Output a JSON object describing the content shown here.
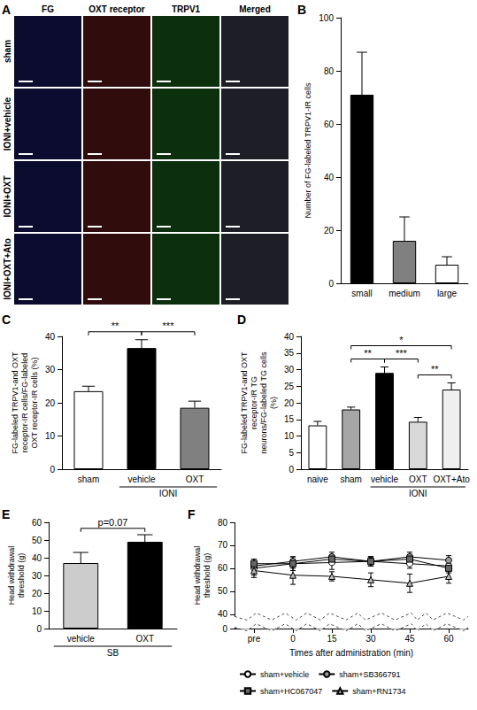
{
  "panel_a": {
    "panel": "A",
    "columns": [
      "FG",
      "OXT receptor",
      "TRPV1",
      "Merged"
    ],
    "rows": [
      "sham",
      "IONI+vehicle",
      "IONI+OXT",
      "IONI+OXT+Ato"
    ]
  },
  "chart_data": [
    {
      "panel": "B",
      "type": "bar",
      "categories": [
        "small",
        "medium",
        "large"
      ],
      "values": [
        71,
        16,
        7
      ],
      "errors": [
        16,
        9,
        3
      ],
      "colors": [
        "#000000",
        "#808080",
        "#ffffff"
      ],
      "y_label": "Number of FG-labeled TRPV1-IR cells",
      "ylim": [
        0,
        100
      ],
      "yticks": [
        0,
        20,
        40,
        60,
        80,
        100
      ],
      "grid": false
    },
    {
      "panel": "C",
      "type": "bar",
      "categories": [
        "sham",
        "vehicle",
        "OXT"
      ],
      "values": [
        23.5,
        36.5,
        18.5
      ],
      "errors": [
        1.5,
        2.5,
        2
      ],
      "colors": [
        "#ffffff",
        "#000000",
        "#808080"
      ],
      "groups": [
        {
          "label": "IONI",
          "categories": [
            "vehicle",
            "OXT"
          ]
        }
      ],
      "significance": [
        {
          "from": "sham",
          "to": "vehicle",
          "label": "**"
        },
        {
          "from": "vehicle",
          "to": "OXT",
          "label": "***"
        }
      ],
      "y_label": "FG-labeled TRPV1-and OXT receptor-IR cells/FG-labeled OXT receptor-IR cells (%)",
      "ylim": [
        0,
        40
      ],
      "yticks": [
        0,
        10,
        20,
        30,
        40
      ],
      "grid": false
    },
    {
      "panel": "D",
      "type": "bar",
      "categories": [
        "naive",
        "sham",
        "vehicle",
        "OXT",
        "OXT+Ato"
      ],
      "values": [
        13.2,
        18,
        29,
        14.3,
        24
      ],
      "errors": [
        1.2,
        0.7,
        1.8,
        1.3,
        2
      ],
      "colors": [
        "#ffffff",
        "#a6a6a6",
        "#000000",
        "#d9d9d9",
        "#efefef"
      ],
      "groups": [
        {
          "label": "IONI",
          "categories": [
            "vehicle",
            "OXT",
            "OXT+Ato"
          ]
        }
      ],
      "significance": [
        {
          "from": "sham",
          "to": "vehicle",
          "label": "**"
        },
        {
          "from": "vehicle",
          "to": "OXT",
          "label": "***"
        },
        {
          "from": "OXT",
          "to": "OXT+Ato",
          "label": "**"
        },
        {
          "from": "sham",
          "to": "OXT+Ato",
          "label": "*"
        }
      ],
      "y_label": "FG-labeled TRPV1-and OXT receptor-IR TG neurons/FG-labeled TG cells (%)",
      "ylim": [
        0,
        40
      ],
      "yticks": [
        0,
        5,
        10,
        15,
        20,
        25,
        30,
        35,
        40
      ],
      "grid": false
    },
    {
      "panel": "E",
      "type": "bar",
      "categories": [
        "vehicle",
        "OXT"
      ],
      "values": [
        37,
        49
      ],
      "errors": [
        6,
        4
      ],
      "colors": [
        "#cccccc",
        "#000000"
      ],
      "groups": [
        {
          "label": "SB",
          "categories": [
            "vehicle",
            "OXT"
          ]
        }
      ],
      "significance": [
        {
          "from": "vehicle",
          "to": "OXT",
          "label": "p=0.07"
        }
      ],
      "y_label": "Head withdrawal threshold (g)",
      "ylim": [
        0,
        60
      ],
      "yticks": [
        0,
        10,
        20,
        30,
        40,
        50,
        60
      ],
      "grid": false
    },
    {
      "panel": "F",
      "type": "line",
      "categories": [
        "pre",
        "0",
        "15",
        "30",
        "45",
        "60"
      ],
      "x_label": "Times after administration (min)",
      "y_label": "Head withdrawal threshold (g)",
      "series": [
        {
          "name": "sham+vehicle",
          "color": "#ffffff",
          "marker": "circle",
          "values": [
            60,
            62,
            62.5,
            63,
            62,
            61
          ],
          "errors": [
            3,
            3,
            3,
            2,
            2,
            2
          ]
        },
        {
          "name": "sham+SB366791",
          "color": "#999999",
          "marker": "circle",
          "values": [
            61,
            63,
            65,
            63,
            65,
            63.5
          ],
          "errors": [
            3,
            2,
            2,
            2,
            2,
            2
          ]
        },
        {
          "name": "sham+HC067047",
          "color": "#666666",
          "marker": "square",
          "values": [
            62,
            62,
            64,
            63,
            64,
            60
          ],
          "errors": [
            2,
            2,
            2,
            2,
            2,
            2
          ]
        },
        {
          "name": "sham+RN1734",
          "color": "#bbbbbb",
          "marker": "triangle",
          "values": [
            59,
            57,
            56.5,
            55,
            53.5,
            56.5
          ],
          "errors": [
            3,
            4,
            2,
            3,
            4,
            3
          ]
        }
      ],
      "ylim": [
        0,
        80
      ],
      "yticks": [
        0,
        40,
        50,
        60,
        70,
        80
      ],
      "legend": "bottom",
      "grid": false
    }
  ]
}
